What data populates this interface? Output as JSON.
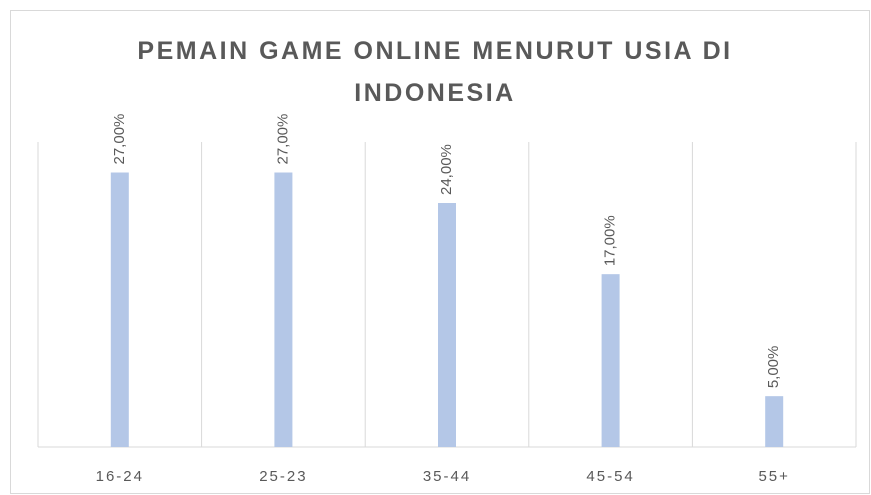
{
  "chart_data": {
    "type": "bar",
    "title": "PEMAIN GAME ONLINE MENURUT USIA DI INDONESIA",
    "categories": [
      "16-24",
      "25-23",
      "35-44",
      "45-54",
      "55+"
    ],
    "values": [
      27,
      27,
      24,
      17,
      5
    ],
    "value_labels": [
      "27,00%",
      "27,00%",
      "24,00%",
      "17,00%",
      "5,00%"
    ],
    "color": "#b4c7e7",
    "ylim": [
      0,
      30
    ]
  }
}
